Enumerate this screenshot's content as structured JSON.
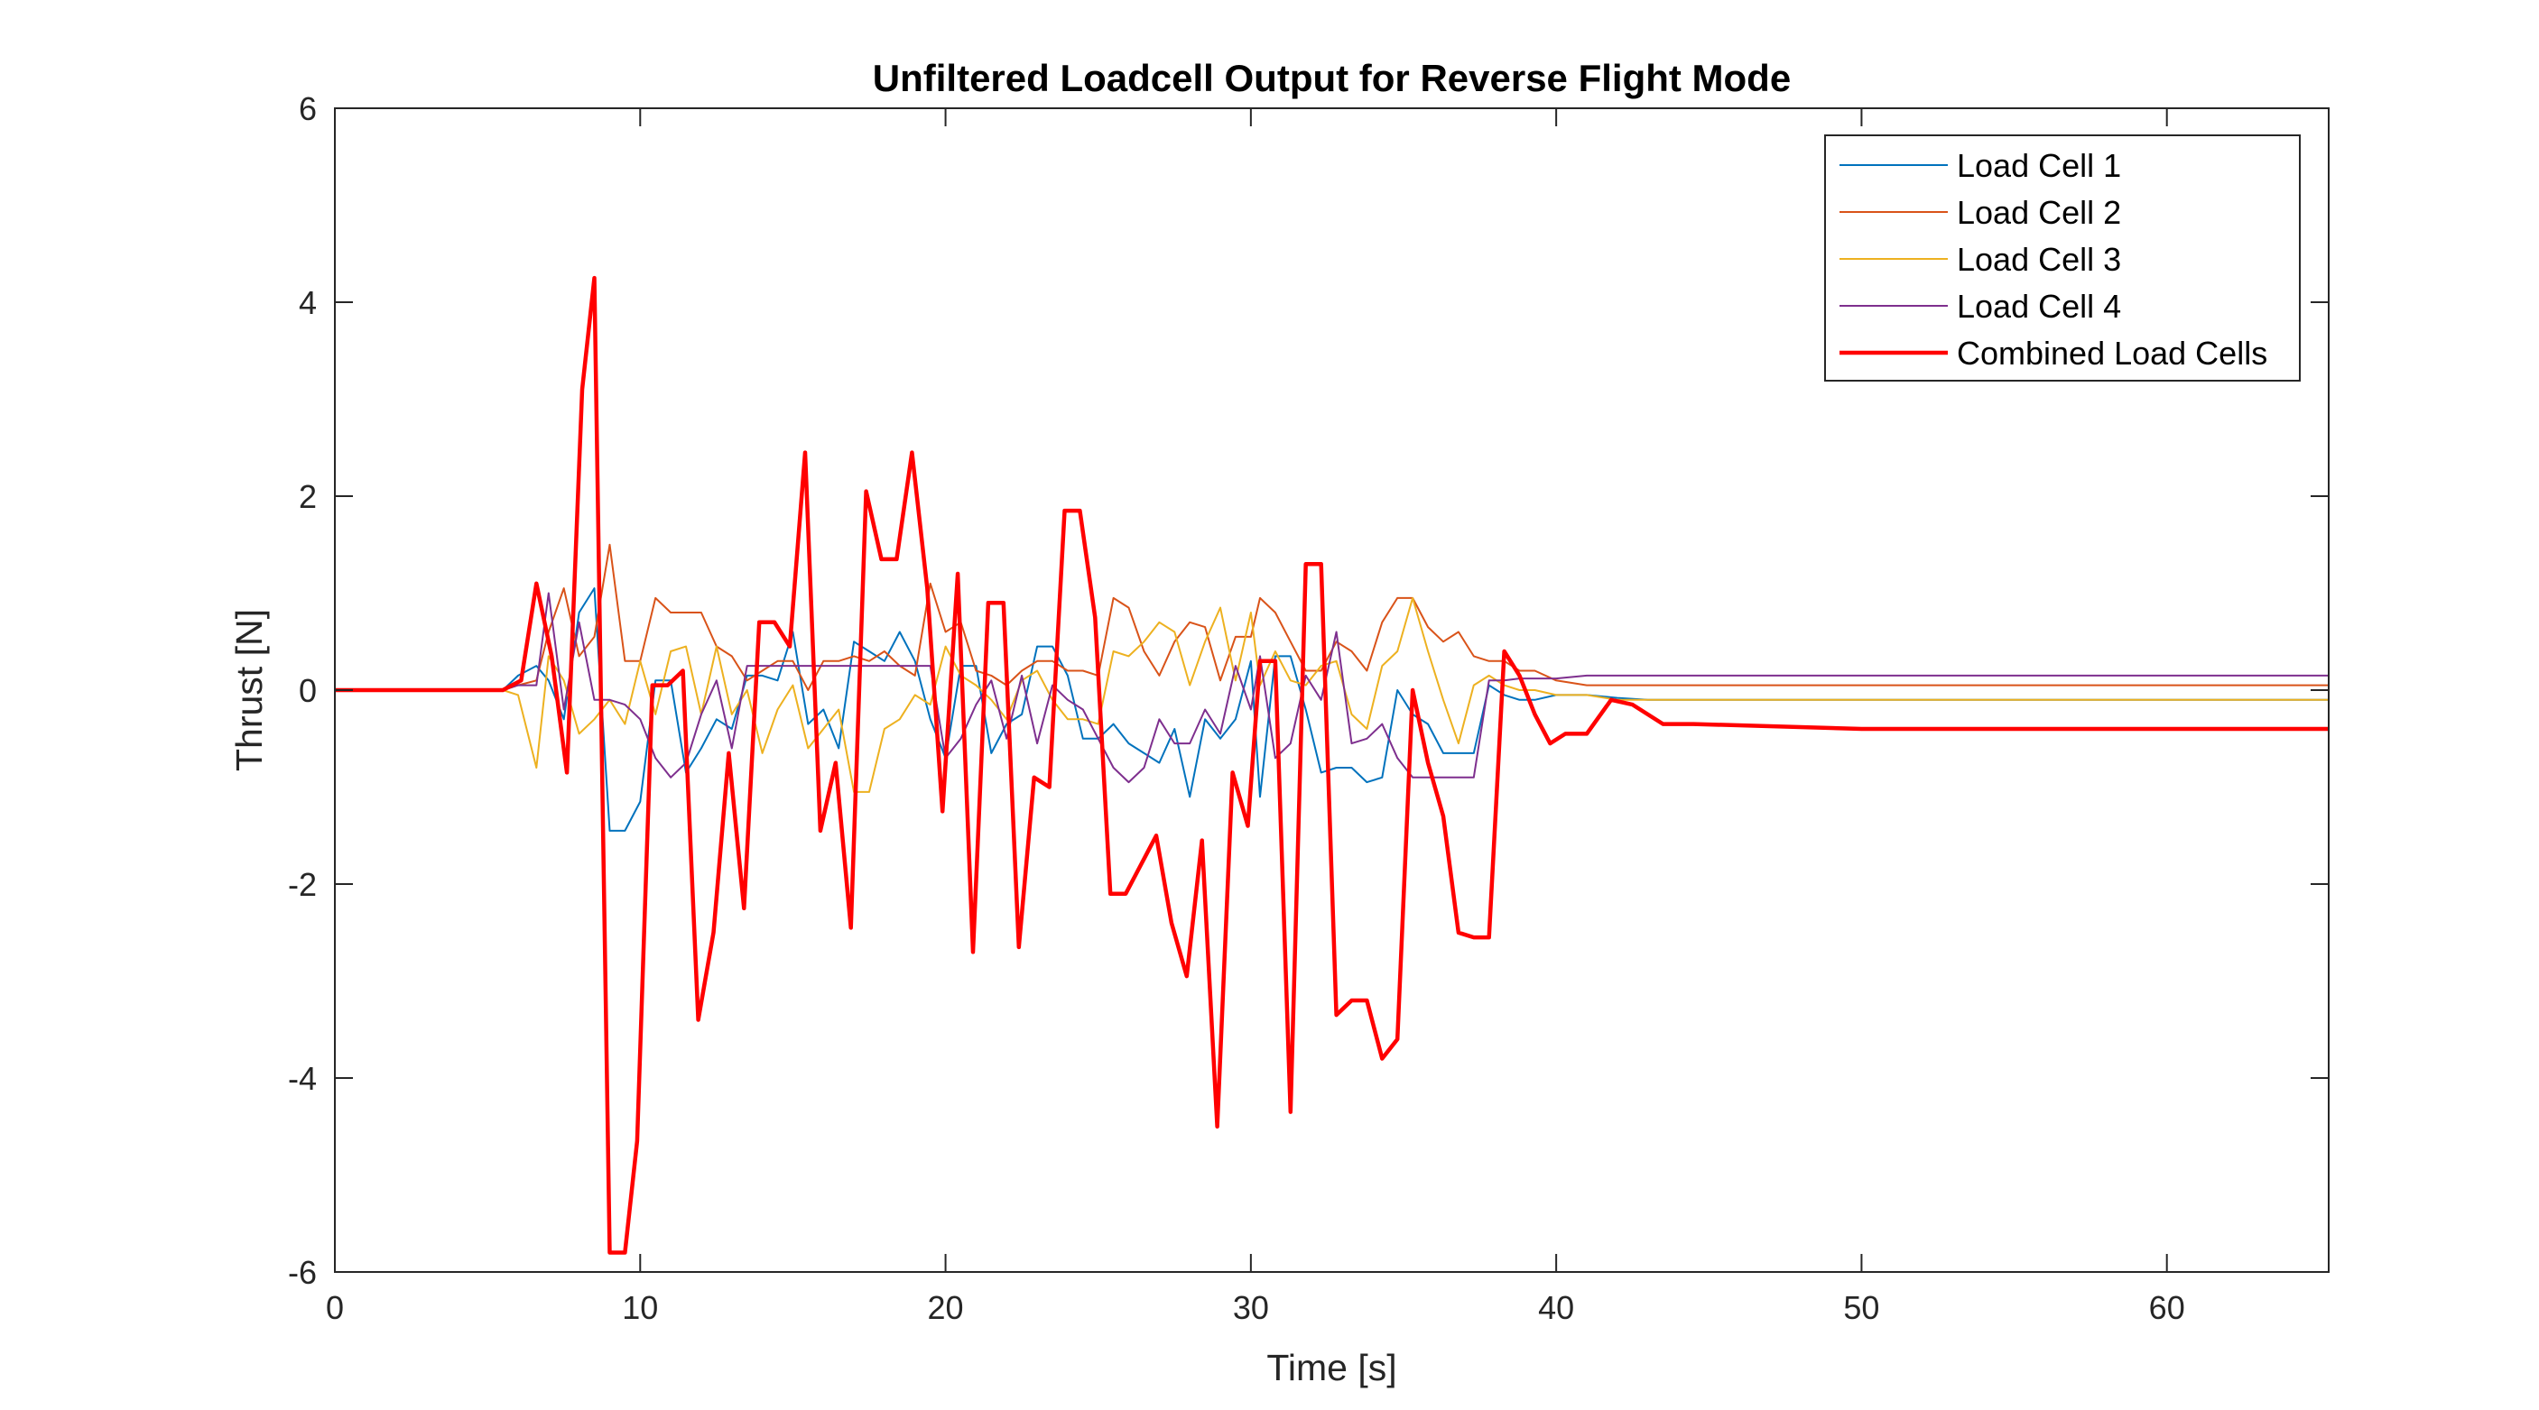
{
  "chart_data": {
    "type": "line",
    "title": "Unfiltered Loadcell Output for Reverse Flight Mode",
    "xlabel": "Time [s]",
    "ylabel": "Thrust [N]",
    "xlim": [
      0,
      65.3
    ],
    "ylim": [
      -6,
      6
    ],
    "xticks": [
      0,
      10,
      20,
      30,
      40,
      50,
      60
    ],
    "yticks": [
      -6,
      -4,
      -2,
      0,
      2,
      4,
      6
    ],
    "grid": false,
    "legend_position": "top-right",
    "series": [
      {
        "name": "Load Cell 1",
        "color": "#0072BD",
        "line_width": "thin",
        "x": [
          0,
          5.5,
          6,
          6.6,
          7,
          7.5,
          8,
          8.5,
          9,
          9.5,
          10,
          10.5,
          11,
          11.5,
          12,
          12.5,
          13,
          13.5,
          14,
          14.5,
          15,
          15.5,
          16,
          16.5,
          17,
          17.5,
          18,
          18.5,
          19,
          19.5,
          20,
          20.5,
          21,
          21.5,
          22,
          22.5,
          23,
          23.5,
          24,
          24.5,
          25,
          25.5,
          26,
          26.5,
          27,
          27.5,
          28,
          28.5,
          29,
          29.5,
          30,
          30.3,
          30.8,
          31.3,
          31.8,
          32.3,
          32.8,
          33.3,
          33.8,
          34.3,
          34.8,
          35.3,
          35.8,
          36.3,
          36.8,
          37.3,
          37.8,
          38.3,
          38.8,
          39.3,
          40,
          41,
          42,
          43,
          44,
          45,
          50,
          55,
          60,
          65.3
        ],
        "y": [
          0,
          0,
          0.15,
          0.25,
          0.1,
          -0.3,
          0.8,
          1.05,
          -1.45,
          -1.45,
          -1.15,
          0.1,
          0.1,
          -0.85,
          -0.6,
          -0.3,
          -0.4,
          0.15,
          0.15,
          0.1,
          0.6,
          -0.35,
          -0.2,
          -0.6,
          0.5,
          0.4,
          0.3,
          0.6,
          0.3,
          -0.3,
          -0.7,
          0.25,
          0.25,
          -0.65,
          -0.35,
          -0.25,
          0.45,
          0.45,
          0.15,
          -0.5,
          -0.5,
          -0.35,
          -0.55,
          -0.65,
          -0.75,
          -0.4,
          -1.1,
          -0.3,
          -0.5,
          -0.3,
          0.3,
          -1.1,
          0.35,
          0.35,
          -0.2,
          -0.85,
          -0.8,
          -0.8,
          -0.95,
          -0.9,
          0,
          -0.25,
          -0.35,
          -0.65,
          -0.65,
          -0.65,
          0.05,
          -0.05,
          -0.1,
          -0.1,
          -0.05,
          -0.05,
          -0.08,
          -0.1,
          -0.1,
          -0.1,
          -0.1,
          -0.1,
          -0.1,
          -0.1
        ]
      },
      {
        "name": "Load Cell 2",
        "color": "#D95319",
        "line_width": "thin",
        "x": [
          0,
          5.5,
          6,
          6.6,
          7,
          7.5,
          8,
          8.5,
          9,
          9.5,
          10,
          10.5,
          11,
          11.5,
          12,
          12.5,
          13,
          13.5,
          14,
          14.5,
          15,
          15.5,
          16,
          16.5,
          17,
          17.5,
          18,
          18.5,
          19,
          19.5,
          20,
          20.5,
          21,
          21.5,
          22,
          22.5,
          23,
          23.5,
          24,
          24.5,
          25,
          25.5,
          26,
          26.5,
          27,
          27.5,
          28,
          28.5,
          29,
          29.5,
          30,
          30.3,
          30.8,
          31.3,
          31.8,
          32.3,
          32.8,
          33.3,
          33.8,
          34.3,
          34.8,
          35.3,
          35.8,
          36.3,
          36.8,
          37.3,
          37.8,
          38.3,
          38.8,
          39.3,
          40,
          41,
          42,
          43,
          44,
          45,
          50,
          55,
          60,
          65.3
        ],
        "y": [
          0,
          0,
          0.05,
          0.1,
          0.6,
          1.05,
          0.35,
          0.55,
          1.5,
          0.3,
          0.3,
          0.95,
          0.8,
          0.8,
          0.8,
          0.45,
          0.35,
          0.1,
          0.2,
          0.3,
          0.3,
          0,
          0.3,
          0.3,
          0.35,
          0.3,
          0.4,
          0.25,
          0.15,
          1.1,
          0.6,
          0.7,
          0.2,
          0.15,
          0.05,
          0.2,
          0.3,
          0.3,
          0.2,
          0.2,
          0.15,
          0.95,
          0.85,
          0.4,
          0.15,
          0.5,
          0.7,
          0.65,
          0.1,
          0.55,
          0.55,
          0.95,
          0.8,
          0.5,
          0.2,
          0.2,
          0.5,
          0.4,
          0.2,
          0.7,
          0.95,
          0.95,
          0.65,
          0.5,
          0.6,
          0.35,
          0.3,
          0.3,
          0.2,
          0.2,
          0.1,
          0.05,
          0.05,
          0.05,
          0.05,
          0.05,
          0.05,
          0.05,
          0.05,
          0.05
        ]
      },
      {
        "name": "Load Cell 3",
        "color": "#EDB120",
        "line_width": "thin",
        "x": [
          0,
          5.5,
          6,
          6.6,
          7,
          7.5,
          8,
          8.5,
          9,
          9.5,
          10,
          10.5,
          11,
          11.5,
          12,
          12.5,
          13,
          13.5,
          14,
          14.5,
          15,
          15.5,
          16,
          16.5,
          17,
          17.5,
          18,
          18.5,
          19,
          19.5,
          20,
          20.5,
          21,
          21.5,
          22,
          22.5,
          23,
          23.5,
          24,
          24.5,
          25,
          25.5,
          26,
          26.5,
          27,
          27.5,
          28,
          28.5,
          29,
          29.5,
          30,
          30.3,
          30.8,
          31.3,
          31.8,
          32.3,
          32.8,
          33.3,
          33.8,
          34.3,
          34.8,
          35.3,
          35.8,
          36.3,
          36.8,
          37.3,
          37.8,
          38.3,
          38.8,
          39.3,
          40,
          41,
          42,
          43,
          44,
          45,
          50,
          55,
          60,
          65.3
        ],
        "y": [
          0,
          0,
          -0.05,
          -0.8,
          0.35,
          0.1,
          -0.45,
          -0.3,
          -0.1,
          -0.35,
          0.3,
          -0.25,
          0.4,
          0.45,
          -0.25,
          0.45,
          -0.25,
          0,
          -0.65,
          -0.2,
          0.05,
          -0.6,
          -0.4,
          -0.2,
          -1.05,
          -1.05,
          -0.4,
          -0.3,
          -0.05,
          -0.15,
          0.45,
          0.15,
          0.05,
          -0.1,
          -0.3,
          0.1,
          0.2,
          -0.1,
          -0.3,
          -0.3,
          -0.35,
          0.4,
          0.35,
          0.5,
          0.7,
          0.6,
          0.05,
          0.5,
          0.85,
          0.1,
          0.8,
          0.05,
          0.4,
          0.1,
          0.05,
          0.25,
          0.3,
          -0.25,
          -0.4,
          0.25,
          0.4,
          0.95,
          0.4,
          -0.1,
          -0.55,
          0.05,
          0.15,
          0.05,
          0,
          0,
          -0.05,
          -0.05,
          -0.1,
          -0.1,
          -0.1,
          -0.1,
          -0.1,
          -0.1,
          -0.1,
          -0.1
        ]
      },
      {
        "name": "Load Cell 4",
        "color": "#7E2F8E",
        "line_width": "thin",
        "x": [
          0,
          5.5,
          6,
          6.6,
          7,
          7.5,
          8,
          8.5,
          9,
          9.5,
          10,
          10.5,
          11,
          11.5,
          12,
          12.5,
          13,
          13.5,
          14,
          14.5,
          15,
          15.5,
          16,
          16.5,
          17,
          17.5,
          18,
          18.5,
          19,
          19.5,
          20,
          20.5,
          21,
          21.5,
          22,
          22.5,
          23,
          23.5,
          24,
          24.5,
          25,
          25.5,
          26,
          26.5,
          27,
          27.5,
          28,
          28.5,
          29,
          29.5,
          30,
          30.3,
          30.8,
          31.3,
          31.8,
          32.3,
          32.8,
          33.3,
          33.8,
          34.3,
          34.8,
          35.3,
          35.8,
          36.3,
          36.8,
          37.3,
          37.8,
          38.3,
          38.8,
          39.3,
          40,
          41,
          42,
          43,
          44,
          45,
          50,
          55,
          60,
          65.3
        ],
        "y": [
          0,
          0,
          0.05,
          0.05,
          1.0,
          -0.2,
          0.7,
          -0.1,
          -0.1,
          -0.15,
          -0.3,
          -0.7,
          -0.9,
          -0.75,
          -0.25,
          0.1,
          -0.6,
          0.25,
          0.25,
          0.25,
          0.25,
          0.25,
          0.25,
          0.25,
          0.25,
          0.25,
          0.25,
          0.25,
          0.25,
          0.25,
          -0.7,
          -0.5,
          -0.15,
          0.1,
          -0.5,
          0.15,
          -0.55,
          0.05,
          -0.1,
          -0.2,
          -0.5,
          -0.8,
          -0.95,
          -0.8,
          -0.3,
          -0.55,
          -0.55,
          -0.2,
          -0.45,
          0.25,
          -0.2,
          0.35,
          -0.7,
          -0.55,
          0.15,
          -0.1,
          0.6,
          -0.55,
          -0.5,
          -0.35,
          -0.7,
          -0.9,
          -0.9,
          -0.9,
          -0.9,
          -0.9,
          0.1,
          0.1,
          0.12,
          0.12,
          0.12,
          0.15,
          0.15,
          0.15,
          0.15,
          0.15,
          0.15,
          0.15,
          0.15,
          0.15
        ]
      },
      {
        "name": "Combined Load Cells",
        "color": "#FF0000",
        "line_width": "thick",
        "x": [
          0,
          5.5,
          6.1,
          6.6,
          7.1,
          7.6,
          8.1,
          8.5,
          9.0,
          9.5,
          9.9,
          10.4,
          10.9,
          11.4,
          11.9,
          12.4,
          12.9,
          13.4,
          13.9,
          14.4,
          14.9,
          15.4,
          15.9,
          16.4,
          16.9,
          17.4,
          17.9,
          18.4,
          18.9,
          19.4,
          19.9,
          20.4,
          20.9,
          21.4,
          21.9,
          22.4,
          22.9,
          23.4,
          23.9,
          24.4,
          24.9,
          25.4,
          25.9,
          26.4,
          26.9,
          27.4,
          27.9,
          28.4,
          28.9,
          29.4,
          29.9,
          30.3,
          30.8,
          31.3,
          31.8,
          32.3,
          32.8,
          33.3,
          33.8,
          34.3,
          34.8,
          35.3,
          35.8,
          36.3,
          36.8,
          37.3,
          37.8,
          38.3,
          38.8,
          39.3,
          39.8,
          40.3,
          41.0,
          41.8,
          42.5,
          43.5,
          44.5,
          50,
          55,
          60,
          65.3
        ],
        "y": [
          0,
          0,
          0.1,
          1.1,
          0.35,
          -0.85,
          3.1,
          4.25,
          -5.8,
          -5.8,
          -4.65,
          0.05,
          0.05,
          0.2,
          -3.4,
          -2.5,
          -0.65,
          -2.25,
          0.7,
          0.7,
          0.45,
          2.45,
          -1.45,
          -0.75,
          -2.45,
          2.05,
          1.35,
          1.35,
          2.45,
          1.05,
          -1.25,
          1.2,
          -2.7,
          0.9,
          0.9,
          -2.65,
          -0.9,
          -1.0,
          1.85,
          1.85,
          0.75,
          -2.1,
          -2.1,
          -1.8,
          -1.5,
          -2.4,
          -2.95,
          -1.55,
          -4.5,
          -0.85,
          -1.4,
          0.3,
          0.3,
          -4.35,
          1.3,
          1.3,
          -3.35,
          -3.2,
          -3.2,
          -3.8,
          -3.6,
          0,
          -0.75,
          -1.3,
          -2.5,
          -2.55,
          -2.55,
          0.4,
          0.15,
          -0.25,
          -0.55,
          -0.45,
          -0.45,
          -0.1,
          -0.15,
          -0.35,
          -0.35,
          -0.4,
          -0.4,
          -0.4,
          -0.4
        ]
      }
    ]
  }
}
